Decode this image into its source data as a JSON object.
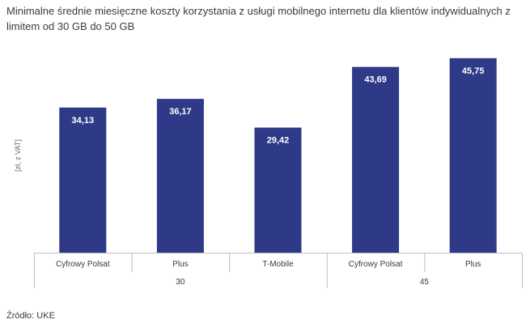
{
  "title": "Minimalne średnie miesięczne koszty korzystania z usługi mobilnego internetu dla klientów indywidualnych z limitem od 30 GB do 50 GB",
  "source": "Źródło: UKE",
  "colors": {
    "bar": "#2e3a87",
    "axis": "#bfbfbf"
  },
  "chart_data": {
    "type": "bar",
    "title": "Minimalne średnie miesięczne koszty korzystania z usługi mobilnego internetu dla klientów indywidualnych z limitem od 30 GB do 50 GB",
    "ylabel": "[zł, z VAT]",
    "xlabel": "",
    "categories": [
      "Cyfrowy Polsat",
      "Plus",
      "T-Mobile",
      "Cyfrowy Polsat",
      "Plus"
    ],
    "groups": [
      {
        "label": "30",
        "members": [
          "Cyfrowy Polsat",
          "Plus",
          "T-Mobile"
        ]
      },
      {
        "label": "45",
        "members": [
          "Cyfrowy Polsat",
          "Plus"
        ]
      }
    ],
    "values": [
      34.13,
      36.17,
      29.42,
      43.69,
      45.75
    ],
    "value_labels": [
      "34,13",
      "36,17",
      "29,42",
      "43,69",
      "45,75"
    ],
    "ylim": [
      0,
      48
    ],
    "grid": false,
    "legend": "none"
  }
}
